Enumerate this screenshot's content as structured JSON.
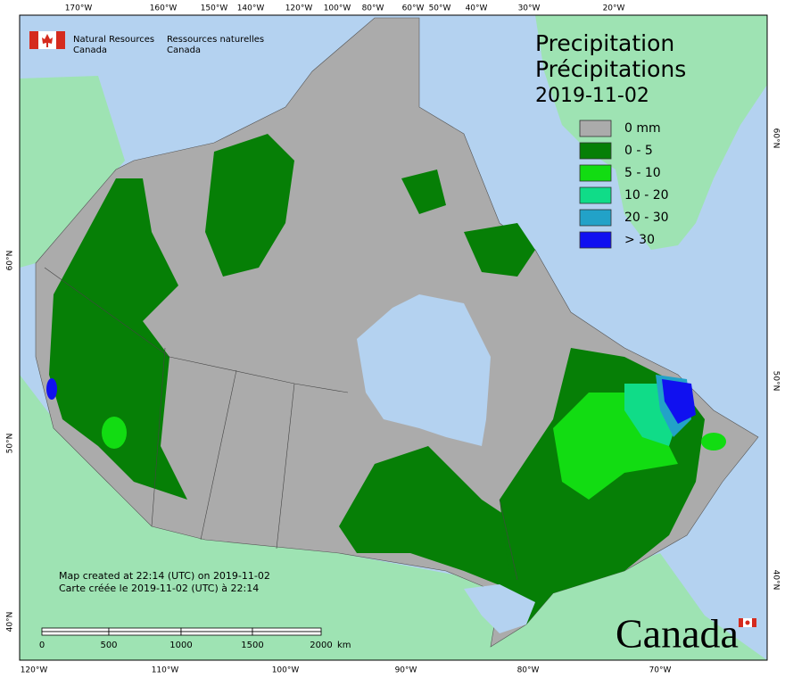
{
  "header": {
    "org_en": [
      "Natural Resources",
      "Canada"
    ],
    "org_fr": [
      "Ressources naturelles",
      "Canada"
    ]
  },
  "title": [
    "Precipitation",
    "Précipitations",
    "2019-11-02"
  ],
  "legend": [
    {
      "label": "0 mm",
      "color": "#ababab"
    },
    {
      "label": "0 - 5",
      "color": "#067f06"
    },
    {
      "label": "5 - 10",
      "color": "#12dc12"
    },
    {
      "label": "10 - 20",
      "color": "#10dc88"
    },
    {
      "label": "20 - 30",
      "color": "#22a2c8"
    },
    {
      "label": "> 30",
      "color": "#1010f0"
    }
  ],
  "graticule": {
    "top": [
      "170°W",
      "160°W",
      "150°W",
      "140°W",
      "120°W",
      "100°W",
      "80°W",
      "60°W",
      "50°W",
      "40°W",
      "30°W",
      "20°W"
    ],
    "bottom": [
      "120°W",
      "110°W",
      "100°W",
      "90°W",
      "80°W",
      "70°W"
    ],
    "left": [
      "60°N",
      "50°N",
      "40°N"
    ],
    "right": [
      "60°N",
      "50°N",
      "40°N"
    ]
  },
  "notes": [
    "Map created at 22:14 (UTC) on 2019-11-02",
    "Carte créée le 2019-11-02 (UTC) à 22:14"
  ],
  "scale_bar": {
    "labels": [
      "0",
      "500",
      "1000",
      "1500",
      "2000"
    ],
    "unit": "km"
  },
  "wordmark": "Canada"
}
